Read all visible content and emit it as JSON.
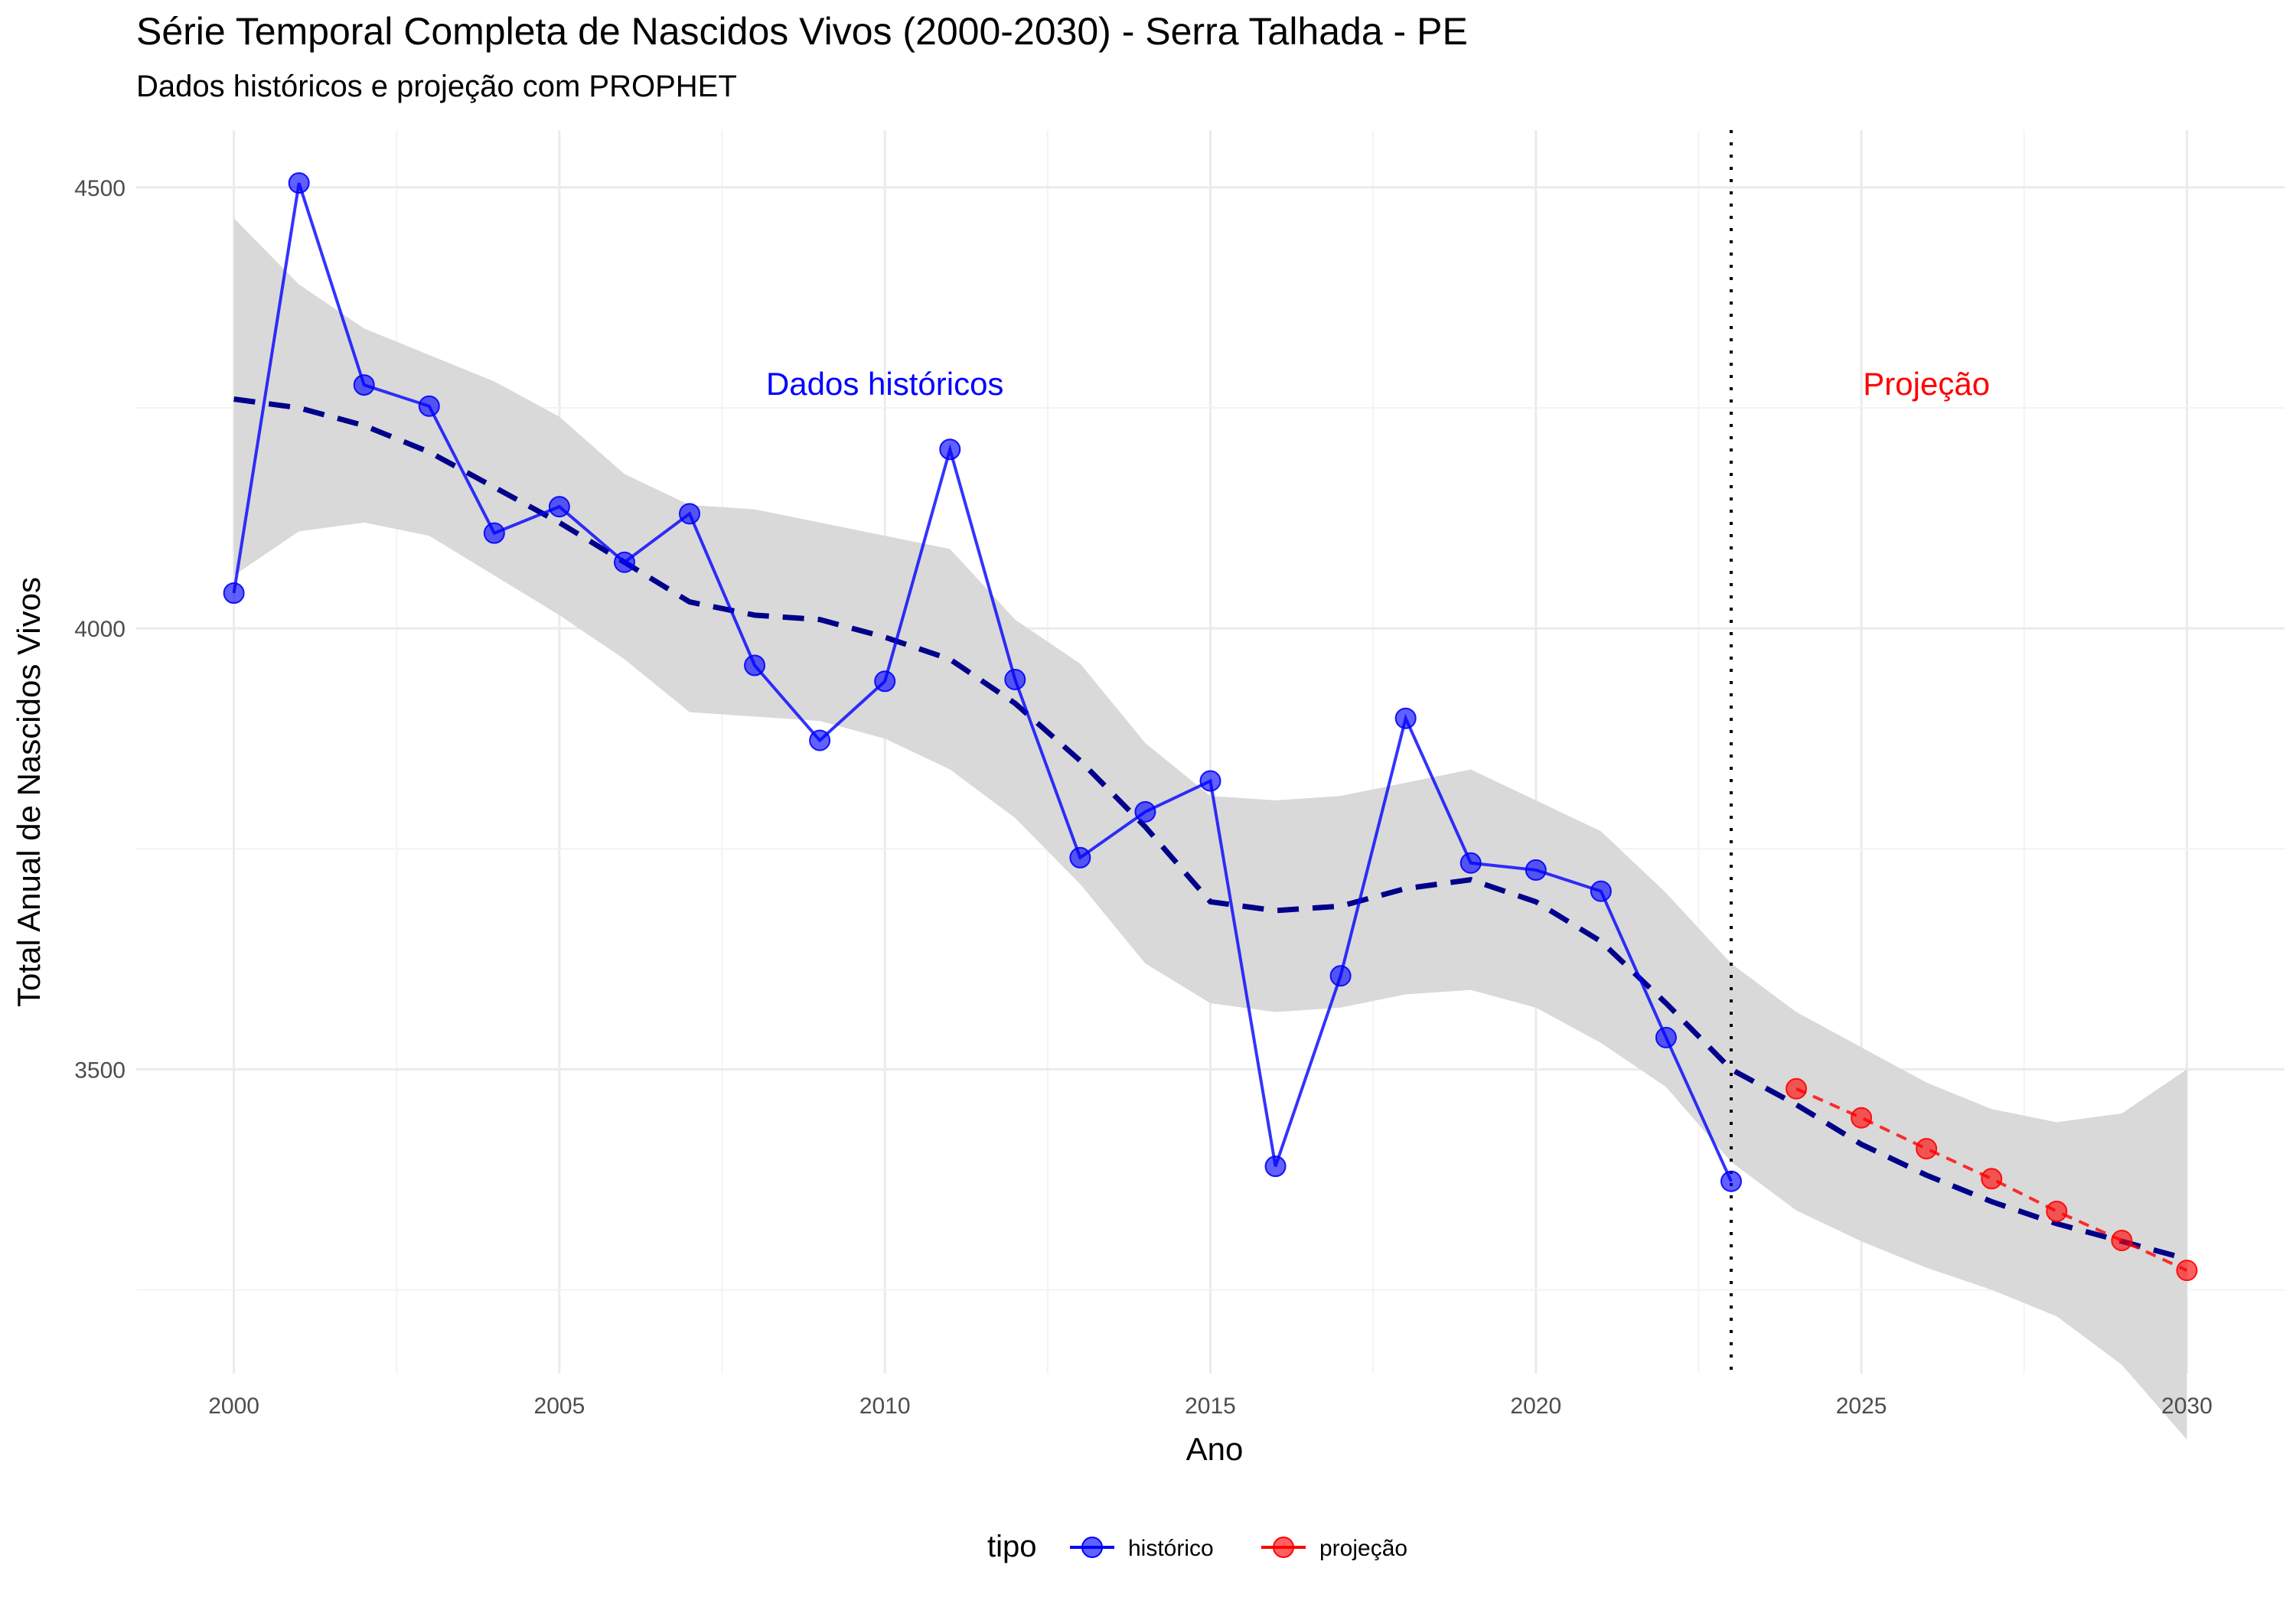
{
  "chart_data": {
    "type": "line",
    "title": "Série Temporal Completa de Nascidos Vivos (2000-2030) -  Serra Talhada - PE",
    "subtitle": "Dados históricos e projeção com PROPHET",
    "xlabel": "Ano",
    "ylabel": "Total Anual de Nascidos Vivos",
    "xlim": [
      1998.5,
      2031.5
    ],
    "ylim": [
      3155,
      4565
    ],
    "x_ticks": [
      2000,
      2005,
      2010,
      2015,
      2020,
      2025,
      2030
    ],
    "y_ticks": [
      3500,
      4000,
      4500
    ],
    "grid": true,
    "cutoff_x": 2023,
    "annotations": [
      {
        "text": "Dados históricos",
        "x": 2010,
        "y": 4275,
        "color": "#0000ff"
      },
      {
        "text": "Projeção",
        "x": 2026,
        "y": 4275,
        "color": "#ff0000"
      }
    ],
    "legend": {
      "title": "tipo",
      "position": "bottom"
    },
    "series": [
      {
        "name": "histórico",
        "color": "#0000ff",
        "x": [
          2000,
          2001,
          2002,
          2003,
          2004,
          2005,
          2006,
          2007,
          2008,
          2009,
          2010,
          2011,
          2012,
          2013,
          2014,
          2015,
          2016,
          2017,
          2018,
          2019,
          2020,
          2021,
          2022,
          2023
        ],
        "values": [
          4040,
          4505,
          4276,
          4252,
          4108,
          4138,
          4075,
          4130,
          3958,
          3873,
          3940,
          4203,
          3942,
          3740,
          3792,
          3827,
          3390,
          3606,
          3898,
          3734,
          3726,
          3702,
          3536,
          3373
        ]
      },
      {
        "name": "projeção",
        "color": "#ff0000",
        "x": [
          2024,
          2025,
          2026,
          2027,
          2028,
          2029,
          2030
        ],
        "values": [
          3478,
          3445,
          3410,
          3376,
          3339,
          3306,
          3272
        ]
      }
    ],
    "trend": {
      "style": "dashed",
      "color": "#00008b",
      "x": [
        2000,
        2001,
        2002,
        2003,
        2004,
        2005,
        2006,
        2007,
        2008,
        2009,
        2010,
        2011,
        2012,
        2013,
        2014,
        2015,
        2016,
        2017,
        2018,
        2019,
        2020,
        2021,
        2022,
        2023,
        2024,
        2025,
        2026,
        2027,
        2028,
        2029,
        2030
      ],
      "values": [
        4260,
        4250,
        4230,
        4200,
        4160,
        4120,
        4075,
        4030,
        4015,
        4010,
        3990,
        3965,
        3915,
        3850,
        3775,
        3690,
        3680,
        3685,
        3705,
        3715,
        3690,
        3645,
        3575,
        3500,
        3460,
        3415,
        3380,
        3350,
        3325,
        3305,
        3285
      ]
    },
    "confidence_band": {
      "color": "#d9d9d9",
      "x": [
        2000,
        2001,
        2002,
        2003,
        2004,
        2005,
        2006,
        2007,
        2008,
        2009,
        2010,
        2011,
        2012,
        2013,
        2014,
        2015,
        2016,
        2017,
        2018,
        2019,
        2020,
        2021,
        2022,
        2023,
        2024,
        2025,
        2026,
        2027,
        2028,
        2029,
        2030
      ],
      "upper": [
        4465,
        4390,
        4340,
        4310,
        4280,
        4240,
        4175,
        4140,
        4135,
        4120,
        4105,
        4090,
        4010,
        3960,
        3870,
        3810,
        3805,
        3810,
        3825,
        3840,
        3805,
        3770,
        3700,
        3620,
        3565,
        3525,
        3485,
        3455,
        3440,
        3450,
        3500
      ],
      "lower": [
        4060,
        4110,
        4120,
        4105,
        4060,
        4015,
        3965,
        3905,
        3900,
        3895,
        3875,
        3840,
        3785,
        3710,
        3620,
        3575,
        3565,
        3570,
        3585,
        3590,
        3570,
        3530,
        3480,
        3395,
        3340,
        3305,
        3275,
        3250,
        3220,
        3165,
        3080
      ]
    }
  }
}
